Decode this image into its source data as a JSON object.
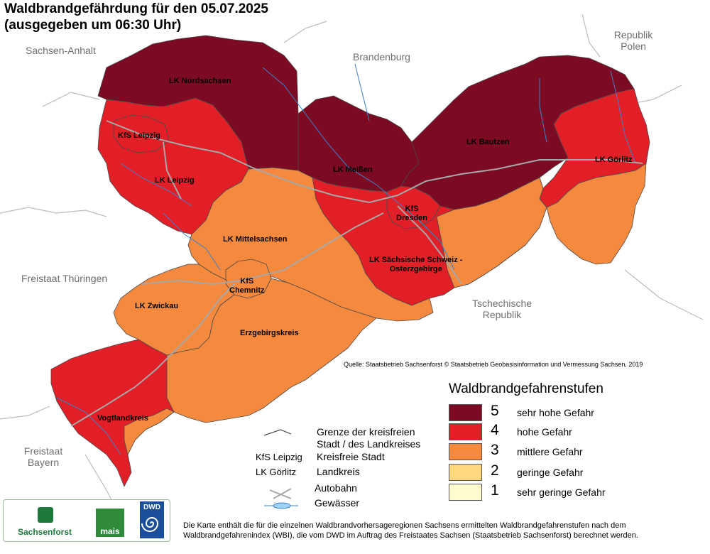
{
  "title_line1": "Waldbrandgefährdung  für den  05.07.2025",
  "title_line2": "(ausgegeben um 06:30 Uhr)",
  "colors": {
    "level5": "#7b0a22",
    "level4": "#e21f26",
    "level3": "#f58a3e",
    "level2": "#ffd77e",
    "level1": "#fffbcc",
    "border": "#4a4a4a",
    "water": "#3c7fcf",
    "motorway": "#a8a8a8"
  },
  "neighbors": {
    "sachsen_anhalt": "Sachsen-Anhalt",
    "brandenburg": "Brandenburg",
    "polen_line1": "Republik",
    "polen_line2": "Polen",
    "thueringen": "Freistaat Thüringen",
    "tschechien_line1": "Tschechische",
    "tschechien_line2": "Republik",
    "bayern_line1": "Freistaat",
    "bayern_line2": "Bayern"
  },
  "regions": {
    "nordsachsen": {
      "label": "LK Nordsachsen",
      "level": 5
    },
    "leipzig_city": {
      "label": "KfS Leipzig",
      "level": 4
    },
    "leipzig_lk": {
      "label": "LK Leipzig",
      "level": 4
    },
    "meissen": {
      "label": "LK Meißen",
      "level": 5
    },
    "bautzen": {
      "label": "LK Bautzen",
      "level": 5
    },
    "goerlitz": {
      "label": "LK Görlitz",
      "level": 4
    },
    "dresden": {
      "label_line1": "KfS",
      "label_line2": "Dresden",
      "level": 4
    },
    "saechsische_schweiz": {
      "label_line1": "LK Sächsische Schweiz -",
      "label_line2": "Osterzgebirge",
      "level": 4
    },
    "mittelsachsen": {
      "label": "LK Mittelsachsen",
      "level": 3
    },
    "chemnitz": {
      "label_line1": "KfS",
      "label_line2": "Chemnitz",
      "level": 3
    },
    "zwickau": {
      "label": "LK Zwickau",
      "level": 3
    },
    "erzgebirgskreis": {
      "label": "Erzgebirgskreis",
      "level": 3
    },
    "vogtlandkreis": {
      "label": "Vogtlandkreis",
      "level": 4
    }
  },
  "source": "Quelle: Staatsbetrieb Sachsenforst  © Staatsbetrieb Geobasisinformation und Vermessung Sachsen, 2019",
  "legend": {
    "title": "Waldbrandgefahrenstufen",
    "items": [
      {
        "num": "5",
        "text": "sehr hohe Gefahr"
      },
      {
        "num": "4",
        "text": "hohe Gefahr"
      },
      {
        "num": "3",
        "text": "mittlere Gefahr"
      },
      {
        "num": "2",
        "text": "geringe Gefahr"
      },
      {
        "num": "1",
        "text": "sehr geringe Gefahr"
      }
    ]
  },
  "key": {
    "border_line1": "Grenze der kreisfreien",
    "border_line2": "Stadt / des Landkreises",
    "kfs_example": "KfS Leipzig",
    "kfs_text": "Kreisfreie Stadt",
    "lk_example": "LK Görlitz",
    "lk_text": "Landkreis",
    "autobahn": "Autobahn",
    "gewaesser": "Gewässer"
  },
  "footer_line1": "Die Karte enthält die für die einzelnen Waldbrandvorhersageregionen Sachsens ermittelten Waldbrandgefahrenstufen nach dem",
  "footer_line2": "Waldbrandgefahrenindex (WBI), die vom DWD im Auftrag des Freistaates Sachsen (Staatsbetrieb Sachsenforst) berechnet werden.",
  "logos": {
    "sachsenforst": "Sachsenforst",
    "mais": "mais",
    "dwd": "DWD"
  }
}
